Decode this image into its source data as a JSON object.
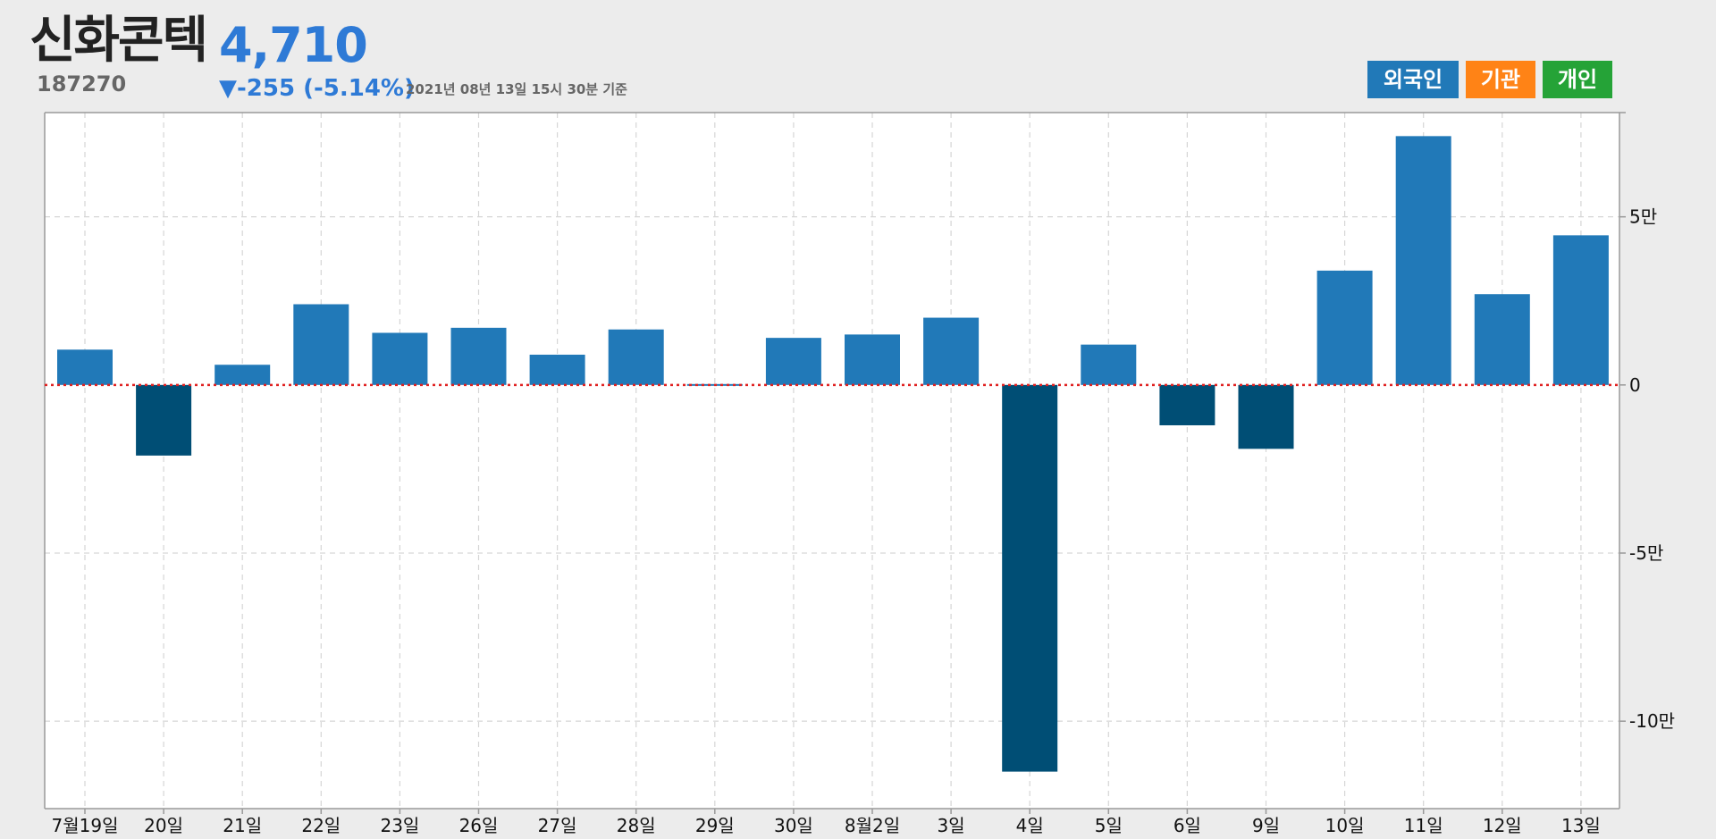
{
  "header": {
    "stock_name": "신화콘텍",
    "stock_code": "187270",
    "price": "4,710",
    "change": "▼-255 (-5.14%)",
    "timestamp": "2021년 08년 13일 15시 30분 기준"
  },
  "legend": {
    "items": [
      {
        "label": "외국인",
        "color": "#2179b8"
      },
      {
        "label": "기관",
        "color": "#ff8316"
      },
      {
        "label": "개인",
        "color": "#25a337"
      }
    ]
  },
  "colors": {
    "positive_bar": "#2179b8",
    "negative_bar": "#004e75",
    "zero_line": "#e02020",
    "grid": "#d6d6d6",
    "plot_background": "#ffffff"
  },
  "chart_data": {
    "type": "bar",
    "series": [
      {
        "name": "외국인",
        "values": [
          10500,
          -21000,
          6000,
          24000,
          15500,
          17000,
          9000,
          16500,
          0,
          14000,
          15000,
          20000,
          -115000,
          12000,
          -12000,
          -19000,
          34000,
          74000,
          27000,
          44500
        ]
      }
    ],
    "categories": [
      "7월19일",
      "20일",
      "21일",
      "22일",
      "23일",
      "26일",
      "27일",
      "28일",
      "29일",
      "30일",
      "8월2일",
      "3일",
      "4일",
      "5일",
      "6일",
      "9일",
      "10일",
      "11일",
      "12일",
      "13일"
    ],
    "y_ticks": [
      {
        "value": 50000,
        "label": "5만"
      },
      {
        "value": 0,
        "label": "0"
      },
      {
        "value": -50000,
        "label": "-5만"
      },
      {
        "value": -100000,
        "label": "-10만"
      }
    ],
    "ylim": [
      -126000,
      81000
    ],
    "grid": true,
    "legend_position": "top-right",
    "y_axis_side": "right"
  }
}
